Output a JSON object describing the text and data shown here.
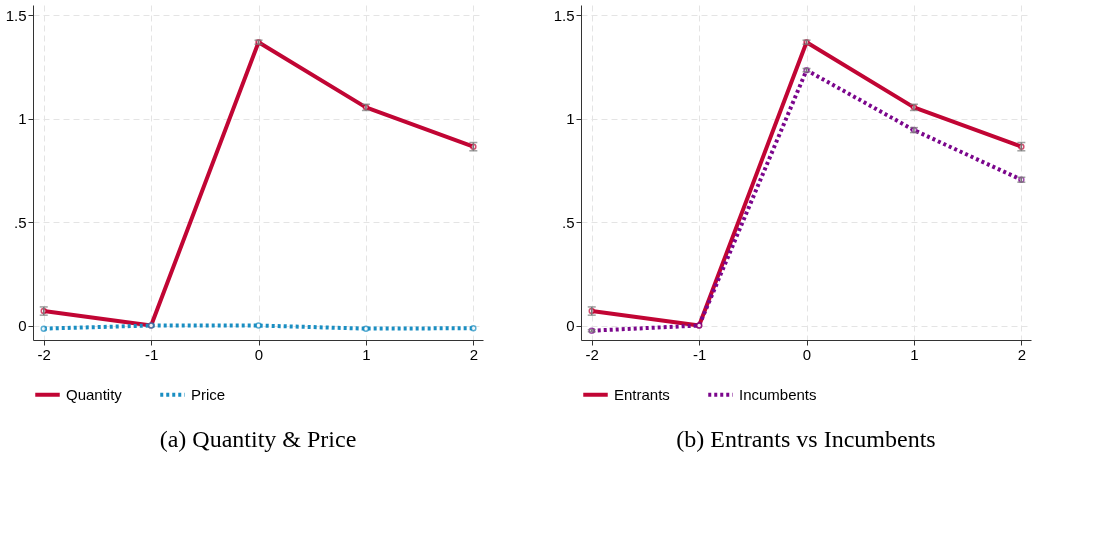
{
  "chart_data": [
    {
      "type": "line",
      "title": "(a) Quantity & Price",
      "x": [
        -2,
        -1,
        0,
        1,
        2
      ],
      "xlim": [
        -2.1,
        2.09
      ],
      "xticks": [
        -2,
        -1,
        0,
        1,
        2
      ],
      "ylim": [
        -0.07,
        1.55
      ],
      "yticks": [
        0,
        {
          "value": 0.5,
          "label": ".5"
        },
        1,
        1.5
      ],
      "grid": true,
      "legend": "bottom",
      "marker": "circle",
      "series": [
        {
          "name": "Quantity",
          "color": "#c10534",
          "line_style": "solid",
          "values": [
            0.07,
            0,
            1.37,
            1.055,
            0.865
          ],
          "errors": [
            0.02,
            0,
            0.01,
            0.015,
            0.02
          ]
        },
        {
          "name": "Price",
          "color": "#1a8ec2",
          "line_style": "dotted",
          "values": [
            -0.015,
            0,
            0.0,
            -0.015,
            -0.013
          ]
        }
      ]
    },
    {
      "type": "line",
      "title": "(b) Entrants vs Incumbents",
      "x": [
        -2,
        -1,
        0,
        1,
        2
      ],
      "xlim": [
        -2.1,
        2.09
      ],
      "xticks": [
        -2,
        -1,
        0,
        1,
        2
      ],
      "ylim": [
        -0.07,
        1.55
      ],
      "yticks": [
        0,
        {
          "value": 0.5,
          "label": ".5"
        },
        1,
        1.5
      ],
      "grid": true,
      "legend": "bottom",
      "marker": "circle",
      "series": [
        {
          "name": "Entrants",
          "color": "#c10534",
          "line_style": "solid",
          "values": [
            0.07,
            0,
            1.37,
            1.055,
            0.865
          ],
          "errors": [
            0.02,
            0,
            0.01,
            0.015,
            0.02
          ]
        },
        {
          "name": "Incumbents",
          "color": "#7b068c",
          "line_style": "dotted",
          "values": [
            -0.025,
            0,
            1.235,
            0.945,
            0.705
          ],
          "errors": [
            0.005,
            0,
            0.008,
            0.012,
            0.012
          ]
        }
      ]
    }
  ]
}
